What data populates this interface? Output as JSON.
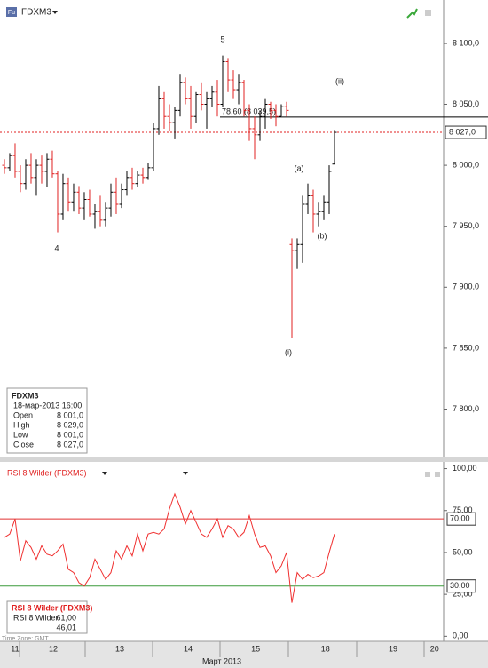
{
  "header": {
    "symbol": "FDXM3",
    "icon": "Fu"
  },
  "info": {
    "symbol": "FDXM3",
    "time": "18-мар-2013 16:00",
    "rows": [
      [
        "Open",
        "8 001,0"
      ],
      [
        "High",
        "8 029,0"
      ],
      [
        "Low",
        "8 001,0"
      ],
      [
        "Close",
        "8 027,0"
      ]
    ]
  },
  "rsi_info": {
    "title": "RSI 8 Wilder (FDXM3)",
    "name": "RSI 8 Wilder",
    "value1": "61,00",
    "value2": "46,01"
  },
  "time_zone": "Time Zone: GMT",
  "chart_data": [
    {
      "type": "ohlc",
      "xlim": [
        -0.83,
        82.5
      ],
      "ylim": [
        7761,
        8132
      ],
      "yticks": [
        {
          "value": 7800,
          "label": "7 800,0"
        },
        {
          "value": 7850,
          "label": "7 850,0"
        },
        {
          "value": 7900,
          "label": "7 900,0"
        },
        {
          "value": 7950,
          "label": "7 950,0"
        },
        {
          "value": 8000,
          "label": "8 000,0"
        },
        {
          "value": 8050,
          "label": "8 050,0"
        },
        {
          "value": 8100,
          "label": "8 100,0"
        }
      ],
      "up_color": "#000000",
      "down_color": "#e02020",
      "x": [
        0,
        1,
        2,
        3,
        4,
        5,
        6,
        7,
        8,
        9,
        10,
        11,
        12,
        13,
        14,
        15,
        16,
        17,
        18,
        19,
        20,
        21,
        22,
        23,
        24,
        25,
        26,
        27,
        28,
        29,
        30,
        31,
        32,
        33,
        34,
        35,
        36,
        37,
        38,
        39,
        40,
        41,
        42,
        43,
        44,
        45,
        46,
        47,
        48,
        49,
        50,
        51,
        52,
        53,
        54,
        55,
        56,
        57,
        58,
        59,
        60,
        61,
        62
      ],
      "series": [
        {
          "name": "FDXM3",
          "open": [
            8000,
            7998,
            8008,
            7995,
            7985,
            8000,
            7990,
            8000,
            7995,
            8005,
            7993,
            7960,
            7985,
            7970,
            7978,
            7965,
            7972,
            7960,
            7962,
            7955,
            7965,
            7978,
            7968,
            7980,
            7990,
            7985,
            7992,
            7990,
            7998,
            8030,
            8055,
            8040,
            8035,
            8045,
            8068,
            8055,
            8040,
            8058,
            8050,
            8055,
            8060,
            8050,
            8085,
            8070,
            8062,
            8068,
            8045,
            8030,
            8025,
            8040,
            8050,
            8045,
            8040,
            8048,
            7935,
            7930,
            7935,
            7968,
            7975,
            7960,
            7962,
            7970,
            8001
          ],
          "high": [
            8005,
            8010,
            8018,
            8000,
            8005,
            8010,
            8005,
            8008,
            8010,
            8012,
            7995,
            7993,
            7990,
            7985,
            7983,
            7978,
            7980,
            7968,
            7975,
            7970,
            7985,
            7990,
            7985,
            7995,
            7998,
            7995,
            7998,
            8002,
            8035,
            8065,
            8060,
            8050,
            8048,
            8075,
            8072,
            8065,
            8060,
            8068,
            8060,
            8065,
            8070,
            8090,
            8088,
            8078,
            8075,
            8070,
            8050,
            8040,
            8045,
            8055,
            8052,
            8050,
            8050,
            8052,
            7940,
            7940,
            7975,
            7985,
            7980,
            7970,
            7975,
            8000,
            8029
          ],
          "low": [
            7993,
            7995,
            7990,
            7978,
            7980,
            7985,
            7975,
            7985,
            7982,
            7990,
            7945,
            7955,
            7962,
            7962,
            7960,
            7955,
            7958,
            7948,
            7950,
            7950,
            7958,
            7960,
            7965,
            7975,
            7980,
            7982,
            7985,
            7988,
            7995,
            8025,
            8030,
            8028,
            8022,
            8040,
            8050,
            8030,
            8035,
            8045,
            8030,
            8048,
            8040,
            8048,
            8060,
            8055,
            8050,
            8040,
            8020,
            8005,
            8020,
            8030,
            8038,
            8032,
            8040,
            8040,
            7858,
            7915,
            7920,
            7960,
            7945,
            7950,
            7955,
            7960,
            8001
          ],
          "close": [
            7998,
            8008,
            7995,
            7985,
            8000,
            7990,
            8000,
            7995,
            8005,
            7993,
            7960,
            7985,
            7970,
            7978,
            7965,
            7972,
            7960,
            7962,
            7955,
            7965,
            7978,
            7968,
            7980,
            7990,
            7985,
            7992,
            7990,
            7998,
            8030,
            8055,
            8040,
            8035,
            8045,
            8068,
            8055,
            8040,
            8058,
            8050,
            8055,
            8060,
            8050,
            8085,
            8070,
            8062,
            8068,
            8045,
            8030,
            8025,
            8040,
            8050,
            8045,
            8040,
            8048,
            8045,
            7930,
            7935,
            7968,
            7975,
            7960,
            7962,
            7970,
            7995,
            8027
          ]
        }
      ],
      "last_price": {
        "value": 8027,
        "label": "8 027,0",
        "color": "#e02020"
      },
      "fib": {
        "label": "78,60 (8 039,5)",
        "value": 8039.5,
        "start_x": 40.5
      },
      "annotations": [
        "5",
        "(ii)",
        "(a)",
        "(b)",
        "4",
        "(i)"
      ]
    },
    {
      "type": "line",
      "title": "RSI 8 Wilder (FDXM3)",
      "xlim": [
        -0.83,
        82.5
      ],
      "ylim": [
        -3,
        104
      ],
      "yticks": [
        {
          "value": 0,
          "label": "0,00"
        },
        {
          "value": 25,
          "label": "25,00"
        },
        {
          "value": 50,
          "label": "50,00"
        },
        {
          "value": 75,
          "label": "75,00"
        },
        {
          "value": 100,
          "label": "100,00"
        }
      ],
      "levels": [
        {
          "value": 70,
          "label": "70,00",
          "color": "#e03030"
        },
        {
          "value": 30,
          "label": "30,00",
          "color": "#3a9a3a"
        }
      ],
      "xticks": [
        {
          "value": 2,
          "label": "11"
        },
        {
          "value": 9.17,
          "label": "12"
        },
        {
          "value": 21.67,
          "label": "13"
        },
        {
          "value": 34.5,
          "label": "14"
        },
        {
          "value": 47.2,
          "label": "15"
        },
        {
          "value": 60.3,
          "label": "18"
        },
        {
          "value": 73,
          "label": "19"
        },
        {
          "value": 80.8,
          "label": "20"
        }
      ],
      "xlabel": "Март 2013",
      "x": [
        0,
        1,
        2,
        3,
        4,
        5,
        6,
        7,
        8,
        9,
        10,
        11,
        12,
        13,
        14,
        15,
        16,
        17,
        18,
        19,
        20,
        21,
        22,
        23,
        24,
        25,
        26,
        27,
        28,
        29,
        30,
        31,
        32,
        33,
        34,
        35,
        36,
        37,
        38,
        39,
        40,
        41,
        42,
        43,
        44,
        45,
        46,
        47,
        48,
        49,
        50,
        51,
        52,
        53,
        54,
        55,
        56,
        57,
        58,
        59,
        60,
        61,
        62
      ],
      "series": [
        {
          "name": "RSI 8 Wilder",
          "color": "#f03030",
          "values": [
            59,
            61,
            70,
            45,
            57,
            53,
            46,
            54,
            49,
            48,
            51,
            55,
            40,
            38,
            32,
            30,
            35,
            46,
            40,
            34,
            38,
            51,
            46,
            54,
            48,
            61,
            51,
            61,
            62,
            61,
            64,
            76,
            85,
            77,
            67,
            75,
            68,
            61,
            59,
            64,
            70,
            59,
            66,
            64,
            59,
            62,
            72,
            61,
            53,
            54,
            48,
            38,
            42,
            50,
            20,
            38,
            34,
            37,
            35,
            36,
            38,
            50,
            61
          ]
        }
      ]
    }
  ]
}
